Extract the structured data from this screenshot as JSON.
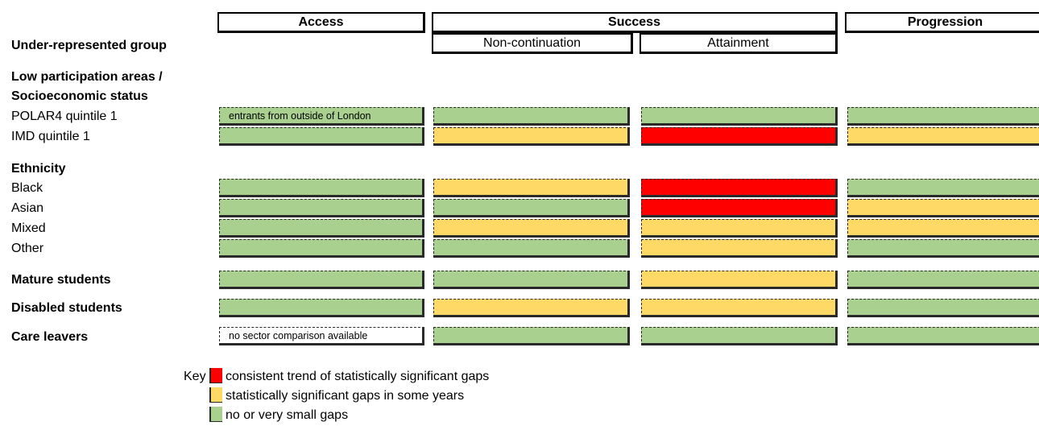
{
  "colors": {
    "red": "#ff0000",
    "amber": "#ffd966",
    "green": "#a9d08e",
    "white": "#ffffff"
  },
  "headers": {
    "access": "Access",
    "success": "Success",
    "progression": "Progression",
    "non_continuation": "Non-continuation",
    "attainment": "Attainment"
  },
  "group_header": "Under-represented group",
  "sections": {
    "low_participation_line1": "Low participation areas /",
    "low_participation_line2": "Socioeconomic status",
    "ethnicity": "Ethnicity",
    "mature": "Mature students",
    "disabled": "Disabled students",
    "care_leavers": "Care leavers"
  },
  "rows": [
    {
      "label": "POLAR4 quintile 1",
      "cells": [
        "green",
        "green",
        "green",
        "green"
      ],
      "access_note": "entrants from outside of London"
    },
    {
      "label": "IMD quintile 1",
      "cells": [
        "green",
        "amber",
        "red",
        "amber"
      ]
    },
    {
      "label": "Black",
      "cells": [
        "green",
        "amber",
        "red",
        "green"
      ]
    },
    {
      "label": "Asian",
      "cells": [
        "green",
        "green",
        "red",
        "amber"
      ]
    },
    {
      "label": "Mixed",
      "cells": [
        "green",
        "amber",
        "amber",
        "amber"
      ]
    },
    {
      "label": "Other",
      "cells": [
        "green",
        "green",
        "amber",
        "green"
      ]
    },
    {
      "label": "Mature students",
      "cells": [
        "green",
        "green",
        "amber",
        "green"
      ]
    },
    {
      "label": "Disabled students",
      "cells": [
        "green",
        "amber",
        "amber",
        "green"
      ]
    },
    {
      "label": "Care leavers",
      "cells": [
        "white",
        "green",
        "green",
        "green"
      ],
      "access_note": "no sector comparison available"
    }
  ],
  "key": {
    "label": "Key",
    "items": [
      {
        "color": "red",
        "text": "consistent trend of statistically significant gaps"
      },
      {
        "color": "amber",
        "text": "statistically significant gaps in some years"
      },
      {
        "color": "green",
        "text": "no or very small gaps"
      }
    ]
  }
}
